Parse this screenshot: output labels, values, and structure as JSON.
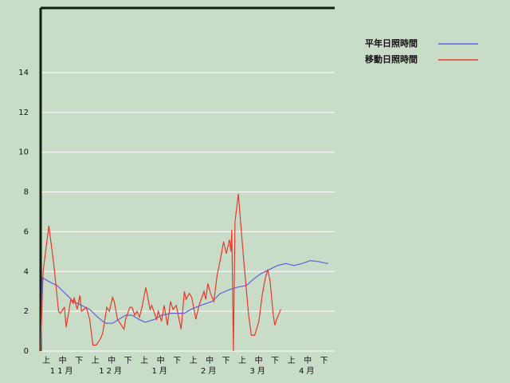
{
  "chart_data": {
    "type": "line",
    "x_categories": [
      "上",
      "中",
      "下",
      "上",
      "中",
      "下",
      "上",
      "中",
      "下",
      "上",
      "中",
      "下",
      "上",
      "中",
      "下",
      "上",
      "中",
      "下"
    ],
    "x_groups": [
      "11月",
      "12月",
      "1月",
      "2月",
      "3月",
      "4月"
    ],
    "xlim": [
      0,
      180
    ],
    "ylim": [
      0,
      17.25
    ],
    "yticks": [
      0,
      2,
      4,
      6,
      8,
      10,
      12,
      14
    ],
    "grid": true,
    "legend": "top-right",
    "series": [
      {
        "name": "平年日照時間",
        "color": "#6060e0",
        "x": [
          0,
          1,
          5,
          10,
          15,
          20,
          25,
          30,
          35,
          38,
          40,
          44,
          48,
          52,
          56,
          60,
          64,
          70,
          74,
          80,
          88,
          92,
          98,
          105,
          110,
          116,
          120,
          126,
          130,
          135,
          140,
          145,
          150,
          155,
          160,
          165,
          170,
          176
        ],
        "values": [
          0,
          3.7,
          3.5,
          3.3,
          2.9,
          2.5,
          2.3,
          2.1,
          1.7,
          1.5,
          1.4,
          1.4,
          1.6,
          1.8,
          1.8,
          1.6,
          1.45,
          1.6,
          1.8,
          1.9,
          1.9,
          2.1,
          2.3,
          2.5,
          2.9,
          3.1,
          3.2,
          3.3,
          3.6,
          3.9,
          4.1,
          4.3,
          4.4,
          4.3,
          4.4,
          4.55,
          4.5,
          4.4
        ]
      },
      {
        "name": "移動日照時間",
        "color": "#e83a28",
        "x": [
          0,
          1.5,
          5,
          8,
          11,
          12,
          14.6,
          15.6,
          18.5,
          20,
          20.5,
          22.4,
          24,
          25,
          28,
          30,
          32,
          34,
          36.5,
          38,
          40.5,
          42,
          44,
          45,
          47,
          51,
          52,
          54.6,
          56,
          57.6,
          59,
          60.5,
          62,
          64.4,
          67,
          68,
          71,
          72,
          74,
          75.6,
          77.6,
          79.5,
          81,
          83,
          86,
          88,
          89,
          91,
          92.5,
          95,
          97,
          100,
          101,
          102.4,
          104,
          106,
          108,
          110,
          112,
          113.6,
          115.6,
          116.5,
          117,
          118,
          119,
          121,
          122.4,
          124.4,
          127.3,
          129,
          131,
          133.6,
          135.6,
          137.6,
          139,
          140.5,
          142.4,
          143.4,
          144.5,
          146,
          147
        ],
        "values": [
          0,
          4,
          6.3,
          4.4,
          2,
          1.9,
          2.2,
          1.2,
          2.6,
          2.4,
          2.7,
          2.1,
          2.8,
          2,
          2.2,
          1.6,
          0.3,
          0.3,
          0.6,
          0.9,
          2.2,
          2,
          2.7,
          2.5,
          1.6,
          1.1,
          1.6,
          2.2,
          2.2,
          1.8,
          2,
          1.7,
          2.2,
          3.2,
          2.1,
          2.3,
          1.6,
          2,
          1.5,
          2.3,
          1.3,
          2.5,
          2.1,
          2.3,
          1.1,
          3,
          2.6,
          2.9,
          2.7,
          1.6,
          2.3,
          3,
          2.6,
          3.4,
          2.9,
          2.5,
          3.8,
          4.6,
          5.5,
          4.9,
          5.6,
          5,
          6.1,
          0,
          6.5,
          7.9,
          6.5,
          4.5,
          1.8,
          0.8,
          0.8,
          1.5,
          2.8,
          3.7,
          4.1,
          3.5,
          1.8,
          1.3,
          1.6,
          1.9,
          2.1
        ]
      }
    ]
  }
}
